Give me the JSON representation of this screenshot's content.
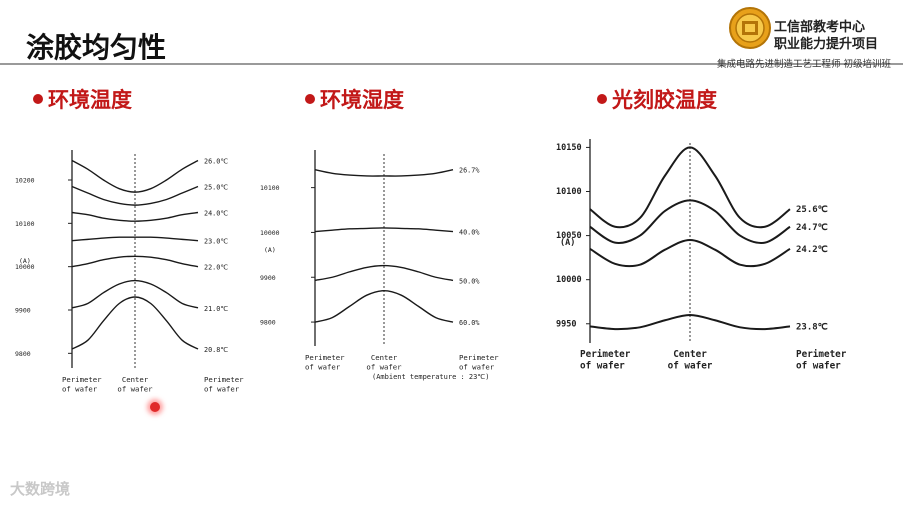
{
  "page": {
    "title": "涂胶均匀性",
    "brand_line1": "工信部教考中心",
    "brand_line2": "职业能力提升项目",
    "brand_sub": "集成电路先进制造工艺工程师 初级培训班",
    "watermark": "大数跨境"
  },
  "sections": [
    {
      "label": "环境温度"
    },
    {
      "label": "环境湿度"
    },
    {
      "label": "光刻胶温度"
    }
  ],
  "colors": {
    "accent": "#c21818",
    "curve": "#1a1a1a",
    "rule": "#9a9a9a"
  },
  "chart_data": [
    {
      "type": "line",
      "title": "环境温度",
      "ylabel": "(A)",
      "ytick_labels": [
        "10200",
        "10100",
        "10000",
        "9900",
        "9800"
      ],
      "xtick_labels": [
        [
          "Perimeter",
          "of wafer"
        ],
        [
          "Center",
          "of wafer"
        ],
        [
          "Perimeter",
          "of wafer"
        ]
      ],
      "x": [
        -1,
        -0.75,
        -0.5,
        -0.25,
        0,
        0.25,
        0.5,
        0.75,
        1
      ],
      "ylim": [
        9780,
        10260
      ],
      "series": [
        {
          "name": "26.0℃",
          "values": [
            10245,
            10225,
            10200,
            10180,
            10172,
            10180,
            10200,
            10225,
            10245
          ]
        },
        {
          "name": "25.0℃",
          "values": [
            10185,
            10170,
            10155,
            10146,
            10142,
            10146,
            10155,
            10170,
            10185
          ]
        },
        {
          "name": "24.0℃",
          "values": [
            10125,
            10120,
            10112,
            10107,
            10105,
            10107,
            10112,
            10120,
            10125
          ]
        },
        {
          "name": "23.0℃",
          "values": [
            10060,
            10063,
            10066,
            10068,
            10068,
            10068,
            10066,
            10063,
            10060
          ]
        },
        {
          "name": "22.0℃",
          "values": [
            10000,
            10007,
            10016,
            10022,
            10024,
            10022,
            10016,
            10007,
            10000
          ]
        },
        {
          "name": "21.0℃",
          "values": [
            9905,
            9915,
            9940,
            9960,
            9968,
            9960,
            9940,
            9915,
            9905
          ]
        },
        {
          "name": "20.8℃",
          "values": [
            9810,
            9830,
            9875,
            9915,
            9930,
            9915,
            9875,
            9830,
            9810
          ]
        }
      ]
    },
    {
      "type": "line",
      "title": "环境湿度",
      "ylabel": "(A)",
      "ytick_labels": [
        "10100",
        "10000",
        "9900",
        "9800"
      ],
      "xtick_labels": [
        [
          "Perimeter",
          "of wafer"
        ],
        [
          "Center",
          "of wafer"
        ],
        [
          "Perimeter",
          "of wafer"
        ]
      ],
      "caption": "(Ambient temperature : 23℃)",
      "x": [
        -1,
        -0.75,
        -0.5,
        -0.25,
        0,
        0.25,
        0.5,
        0.75,
        1
      ],
      "ylim": [
        9760,
        10175
      ],
      "series": [
        {
          "name": "26.7%",
          "values": [
            10140,
            10132,
            10128,
            10126,
            10126,
            10126,
            10128,
            10132,
            10140
          ]
        },
        {
          "name": "40.0%",
          "values": [
            10002,
            10005,
            10008,
            10009,
            10010,
            10009,
            10008,
            10005,
            10002
          ]
        },
        {
          "name": "50.0%",
          "values": [
            9893,
            9900,
            9912,
            9922,
            9926,
            9922,
            9912,
            9900,
            9893
          ]
        },
        {
          "name": "60.0%",
          "values": [
            9800,
            9810,
            9835,
            9860,
            9870,
            9860,
            9835,
            9810,
            9800
          ]
        }
      ]
    },
    {
      "type": "line",
      "title": "光刻胶温度",
      "ylabel": "(A)",
      "ytick_labels": [
        "10150",
        "10100",
        "10050",
        "10000",
        "9950"
      ],
      "xtick_labels": [
        [
          "Perimeter",
          "of wafer"
        ],
        [
          "Center",
          "of wafer"
        ],
        [
          "Perimeter",
          "of wafer"
        ]
      ],
      "x": [
        -1,
        -0.75,
        -0.5,
        -0.25,
        0,
        0.25,
        0.5,
        0.75,
        1
      ],
      "ylim": [
        9935,
        10155
      ],
      "series": [
        {
          "name": "25.6℃",
          "values": [
            10080,
            10060,
            10070,
            10118,
            10150,
            10118,
            10070,
            10060,
            10080
          ]
        },
        {
          "name": "24.7℃",
          "values": [
            10060,
            10042,
            10050,
            10078,
            10090,
            10078,
            10050,
            10042,
            10060
          ]
        },
        {
          "name": "24.2℃",
          "values": [
            10035,
            10018,
            10017,
            10034,
            10045,
            10034,
            10017,
            10018,
            10035
          ]
        },
        {
          "name": "23.8℃",
          "values": [
            9947,
            9944,
            9946,
            9954,
            9960,
            9954,
            9946,
            9944,
            9947
          ]
        }
      ]
    }
  ]
}
